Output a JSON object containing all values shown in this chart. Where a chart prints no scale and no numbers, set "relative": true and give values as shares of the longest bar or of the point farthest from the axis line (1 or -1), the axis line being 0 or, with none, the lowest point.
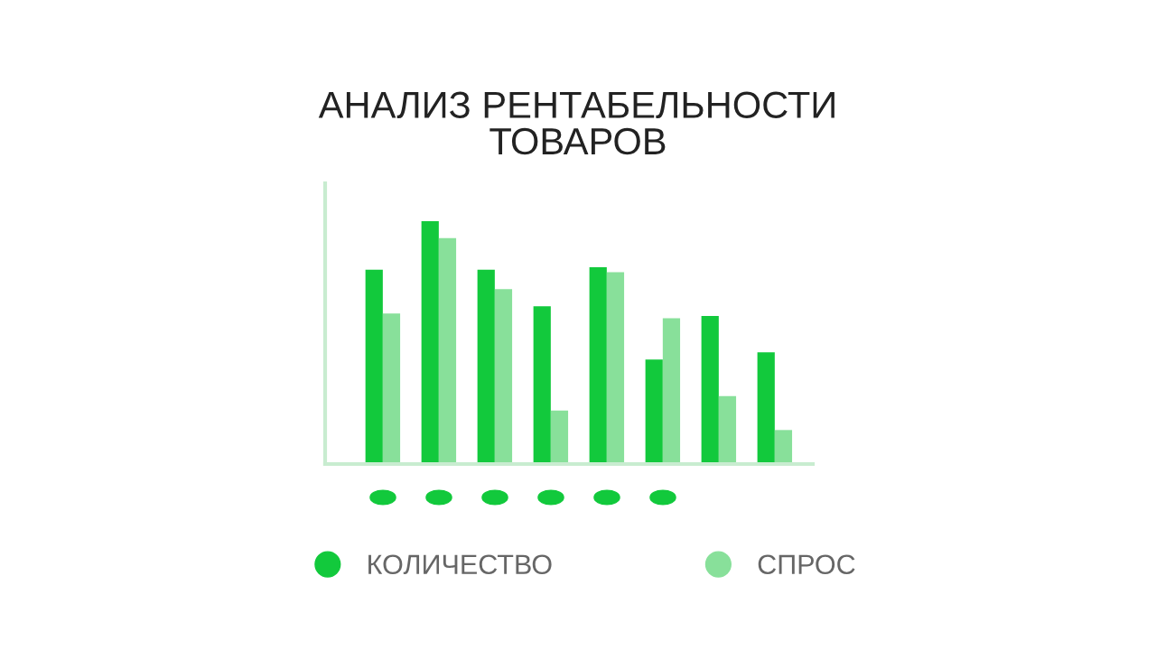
{
  "chart_data": {
    "type": "bar",
    "title": "АНАЛИЗ РЕНТАБЕЛЬНОСТИ\nТОВАРОВ",
    "relative": true,
    "categories": [
      null,
      null,
      null,
      null,
      null,
      null,
      null,
      null
    ],
    "series": [
      {
        "name": "КОЛИЧЕСТВО",
        "color": "#12c93c",
        "values": [
          0.8,
          1.0,
          0.8,
          0.65,
          0.81,
          0.43,
          0.61,
          0.46
        ]
      },
      {
        "name": "СПРОС",
        "color": "#88e09a",
        "values": [
          0.62,
          0.93,
          0.72,
          0.22,
          0.79,
          0.6,
          0.28,
          0.14
        ]
      }
    ],
    "legend": "bottom",
    "grid": false
  }
}
